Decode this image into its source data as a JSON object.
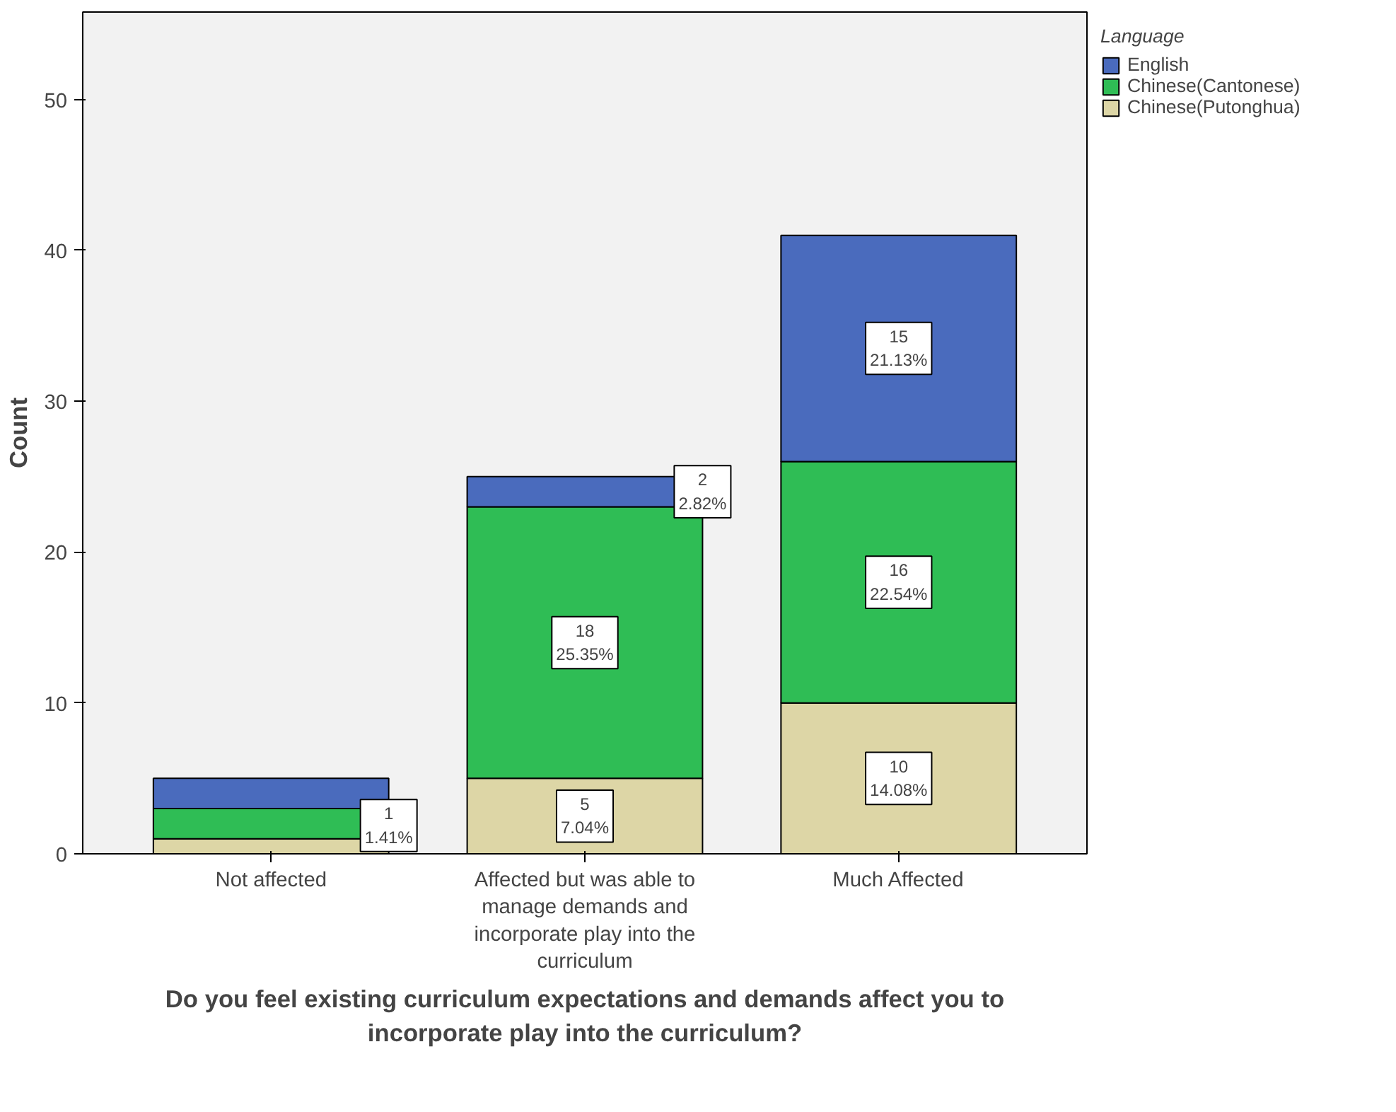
{
  "chart_data": {
    "type": "bar",
    "stacked": true,
    "xlabel": "Do you feel existing curriculum expectations and demands affect you to incorporate play into the curriculum?",
    "ylabel": "Count",
    "legend_title": "Language",
    "categories": [
      "Not affected",
      "Affected but was able to manage demands and incorporate play into the curriculum",
      "Much Affected"
    ],
    "series": [
      {
        "name": "Chinese(Putonghua)",
        "color": "#ddd6a6",
        "values": [
          1,
          5,
          10
        ],
        "value_labels": [
          "1\n1.41%",
          "5\n7.04%",
          "10\n14.08%"
        ]
      },
      {
        "name": "Chinese(Cantonese)",
        "color": "#2fbd55",
        "values": [
          2,
          18,
          16
        ],
        "value_labels": [
          null,
          "18\n25.35%",
          "16\n22.54%"
        ]
      },
      {
        "name": "English",
        "color": "#4a6bbd",
        "values": [
          2,
          2,
          15
        ],
        "value_labels": [
          null,
          "2\n2.82%",
          "15\n21.13%"
        ]
      }
    ],
    "ylim": [
      0,
      55.8
    ],
    "yticks": [
      0,
      10,
      20,
      30,
      40,
      50
    ],
    "grid": false,
    "legend": "top right"
  }
}
